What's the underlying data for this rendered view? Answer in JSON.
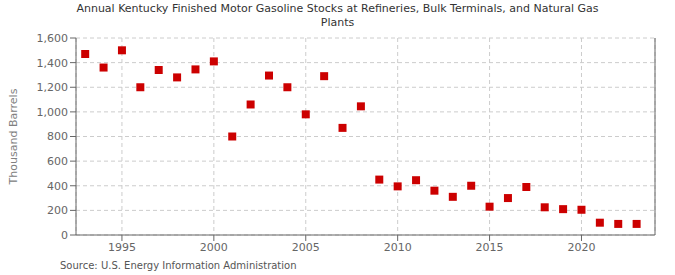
{
  "chart_data": {
    "type": "scatter",
    "title": "Annual Kentucky Finished Motor Gasoline Stocks at Refineries, Bulk Terminals, and Natural Gas\nPlants",
    "ylabel": "Thousand Barrels",
    "annotations": [
      "Source: U.S. Energy Information Administration"
    ],
    "x": [
      1993,
      1994,
      1995,
      1996,
      1997,
      1998,
      1999,
      2000,
      2001,
      2002,
      2003,
      2004,
      2005,
      2006,
      2007,
      2008,
      2009,
      2010,
      2011,
      2012,
      2013,
      2014,
      2015,
      2016,
      2017,
      2018,
      2019,
      2020,
      2021,
      2022,
      2023
    ],
    "values": [
      1470,
      1360,
      1500,
      1200,
      1340,
      1280,
      1345,
      1410,
      800,
      1060,
      1295,
      1200,
      980,
      1290,
      870,
      1045,
      450,
      395,
      445,
      360,
      310,
      400,
      230,
      300,
      390,
      225,
      210,
      205,
      100,
      90,
      90
    ],
    "color": "#cc0000",
    "marker": "square",
    "xlim": [
      1992.5,
      2024
    ],
    "xticks": [
      1995,
      2000,
      2005,
      2010,
      2015,
      2020
    ],
    "ylim": [
      0,
      1600
    ],
    "yticks": [
      0,
      200,
      400,
      600,
      800,
      {
        "value": 1000,
        "label": "1,000"
      },
      {
        "value": 1200,
        "label": "1,200"
      },
      {
        "value": 1400,
        "label": "1,400"
      },
      {
        "value": 1600,
        "label": "1,600"
      }
    ],
    "grid": true
  }
}
